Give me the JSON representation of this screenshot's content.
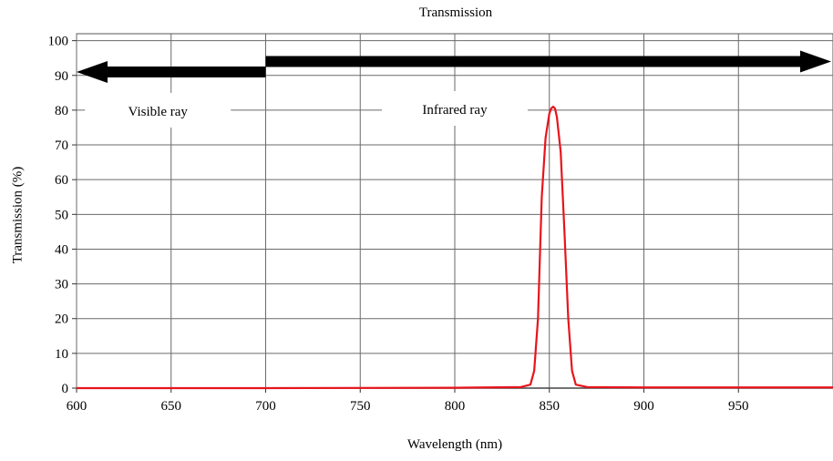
{
  "chart_data": {
    "type": "line",
    "title": "Transmission",
    "xlabel": "Wavelength (nm)",
    "ylabel": "Transmission (%)",
    "xlim": [
      600,
      1000
    ],
    "ylim": [
      0,
      102
    ],
    "x_ticks": [
      600,
      650,
      700,
      750,
      800,
      850,
      900,
      950
    ],
    "y_ticks": [
      0,
      10,
      20,
      30,
      40,
      50,
      60,
      70,
      80,
      90,
      100
    ],
    "grid": true,
    "series": [
      {
        "color": "#e8141c",
        "x": [
          600,
          700,
          800,
          835,
          840,
          842,
          844,
          846,
          848,
          850,
          851,
          852,
          853,
          854,
          856,
          858,
          860,
          862,
          864,
          870,
          900,
          1000
        ],
        "y": [
          0,
          0,
          0.1,
          0.3,
          1,
          5,
          20,
          55,
          72,
          79,
          80.5,
          81,
          80.5,
          78,
          68,
          45,
          20,
          5,
          1,
          0.3,
          0.2,
          0.2
        ]
      }
    ],
    "annotations": [
      {
        "text": "Visible ray",
        "range": [
          600,
          700
        ],
        "direction": "left",
        "y": 91
      },
      {
        "text": "Infrared ray",
        "range": [
          700,
          1000
        ],
        "direction": "right",
        "y": 94
      }
    ]
  }
}
